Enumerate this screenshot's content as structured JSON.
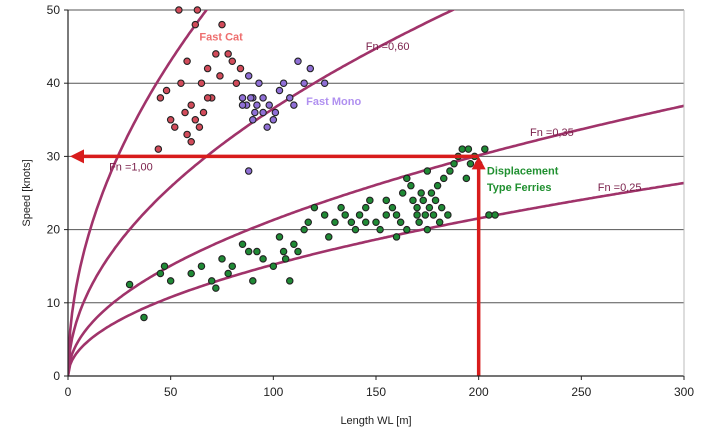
{
  "chart_data": {
    "type": "scatter",
    "xlabel": "Length WL [m]",
    "ylabel": "Speed [knots]",
    "xlim": [
      0,
      300
    ],
    "ylim": [
      0,
      50
    ],
    "x_ticks": [
      "0",
      "50",
      "100",
      "150",
      "200",
      "250",
      "300"
    ],
    "y_ticks": [
      "0",
      "10",
      "20",
      "30",
      "40",
      "50"
    ],
    "grid": "horizontal",
    "colors": {
      "curve": "#a0336a",
      "arrow": "#d81c1c",
      "fast_cat_points": "#d24b5a",
      "fast_mono_points": "#8f6fd6",
      "ferry_points": "#1f8a35",
      "fast_cat_label": "#ee6e6e",
      "fast_mono_label": "#b090f0",
      "ferry_label": "#209030"
    },
    "curves": [
      {
        "label": "Fn =1,00",
        "fn": 1.0
      },
      {
        "label": "Fn =0,60",
        "fn": 0.6
      },
      {
        "label": "Fn =0,35",
        "fn": 0.35
      },
      {
        "label": "Fn =0,25",
        "fn": 0.25
      }
    ],
    "groups": {
      "fast_cat": {
        "label": "Fast Cat",
        "points": [
          [
            54,
            50
          ],
          [
            63,
            50
          ],
          [
            48,
            39
          ],
          [
            55,
            40
          ],
          [
            58,
            43
          ],
          [
            62,
            48
          ],
          [
            65,
            40
          ],
          [
            68,
            42
          ],
          [
            70,
            38
          ],
          [
            72,
            44
          ],
          [
            74,
            41
          ],
          [
            75,
            48
          ],
          [
            78,
            44
          ],
          [
            80,
            43
          ],
          [
            82,
            40
          ],
          [
            84,
            42
          ],
          [
            52,
            34
          ],
          [
            57,
            36
          ],
          [
            60,
            37
          ],
          [
            62,
            35
          ],
          [
            64,
            34
          ],
          [
            66,
            36
          ],
          [
            68,
            38
          ],
          [
            45,
            38
          ],
          [
            44,
            31
          ],
          [
            58,
            33
          ],
          [
            60,
            32
          ],
          [
            50,
            35
          ]
        ]
      },
      "fast_mono": {
        "label": "Fast Mono",
        "points": [
          [
            85,
            38
          ],
          [
            87,
            37
          ],
          [
            88,
            41
          ],
          [
            90,
            38
          ],
          [
            92,
            37
          ],
          [
            93,
            40
          ],
          [
            95,
            36
          ],
          [
            97,
            34
          ],
          [
            100,
            35
          ],
          [
            103,
            39
          ],
          [
            105,
            40
          ],
          [
            108,
            38
          ],
          [
            110,
            37
          ],
          [
            112,
            43
          ],
          [
            115,
            40
          ],
          [
            118,
            42
          ],
          [
            125,
            40
          ],
          [
            85,
            37
          ],
          [
            89,
            38
          ],
          [
            91,
            36
          ],
          [
            95,
            38
          ],
          [
            98,
            37
          ],
          [
            101,
            36
          ],
          [
            88,
            28
          ],
          [
            90,
            35
          ]
        ]
      },
      "ferries": {
        "label": "Displacement Type Ferries",
        "points": [
          [
            30,
            12.5
          ],
          [
            37,
            8
          ],
          [
            47,
            15
          ],
          [
            50,
            13
          ],
          [
            45,
            14
          ],
          [
            60,
            14
          ],
          [
            65,
            15
          ],
          [
            70,
            13
          ],
          [
            72,
            12
          ],
          [
            75,
            16
          ],
          [
            78,
            14
          ],
          [
            80,
            15
          ],
          [
            85,
            18
          ],
          [
            88,
            17
          ],
          [
            90,
            13
          ],
          [
            92,
            17
          ],
          [
            95,
            16
          ],
          [
            100,
            15
          ],
          [
            103,
            19
          ],
          [
            105,
            17
          ],
          [
            106,
            16
          ],
          [
            108,
            13
          ],
          [
            110,
            18
          ],
          [
            112,
            17
          ],
          [
            115,
            20
          ],
          [
            117,
            21
          ],
          [
            120,
            23
          ],
          [
            125,
            22
          ],
          [
            127,
            19
          ],
          [
            130,
            21
          ],
          [
            133,
            23
          ],
          [
            135,
            22
          ],
          [
            138,
            21
          ],
          [
            140,
            20
          ],
          [
            142,
            22
          ],
          [
            145,
            23
          ],
          [
            147,
            24
          ],
          [
            150,
            21
          ],
          [
            152,
            20
          ],
          [
            155,
            24
          ],
          [
            158,
            23
          ],
          [
            160,
            22
          ],
          [
            162,
            21
          ],
          [
            163,
            25
          ],
          [
            165,
            27
          ],
          [
            167,
            26
          ],
          [
            168,
            24
          ],
          [
            170,
            23
          ],
          [
            171,
            21
          ],
          [
            172,
            25
          ],
          [
            173,
            24
          ],
          [
            174,
            22
          ],
          [
            175,
            20
          ],
          [
            176,
            23
          ],
          [
            177,
            25
          ],
          [
            178,
            22
          ],
          [
            179,
            24
          ],
          [
            180,
            26
          ],
          [
            181,
            21
          ],
          [
            182,
            23
          ],
          [
            183,
            27
          ],
          [
            185,
            22
          ],
          [
            186,
            28
          ],
          [
            188,
            29
          ],
          [
            190,
            30
          ],
          [
            192,
            31
          ],
          [
            194,
            27
          ],
          [
            195,
            31
          ],
          [
            196,
            29
          ],
          [
            198,
            30
          ],
          [
            200,
            29
          ],
          [
            203,
            31
          ],
          [
            205,
            22
          ],
          [
            208,
            22
          ],
          [
            160,
            19
          ],
          [
            165,
            20
          ],
          [
            170,
            22
          ],
          [
            175,
            28
          ],
          [
            145,
            21
          ],
          [
            155,
            22
          ]
        ]
      }
    },
    "annotations": {
      "horizontal_arrow": {
        "from": [
          200,
          30
        ],
        "to": [
          0,
          30
        ]
      },
      "vertical_arrow": {
        "from": [
          200,
          0
        ],
        "to": [
          200,
          30
        ]
      }
    }
  }
}
